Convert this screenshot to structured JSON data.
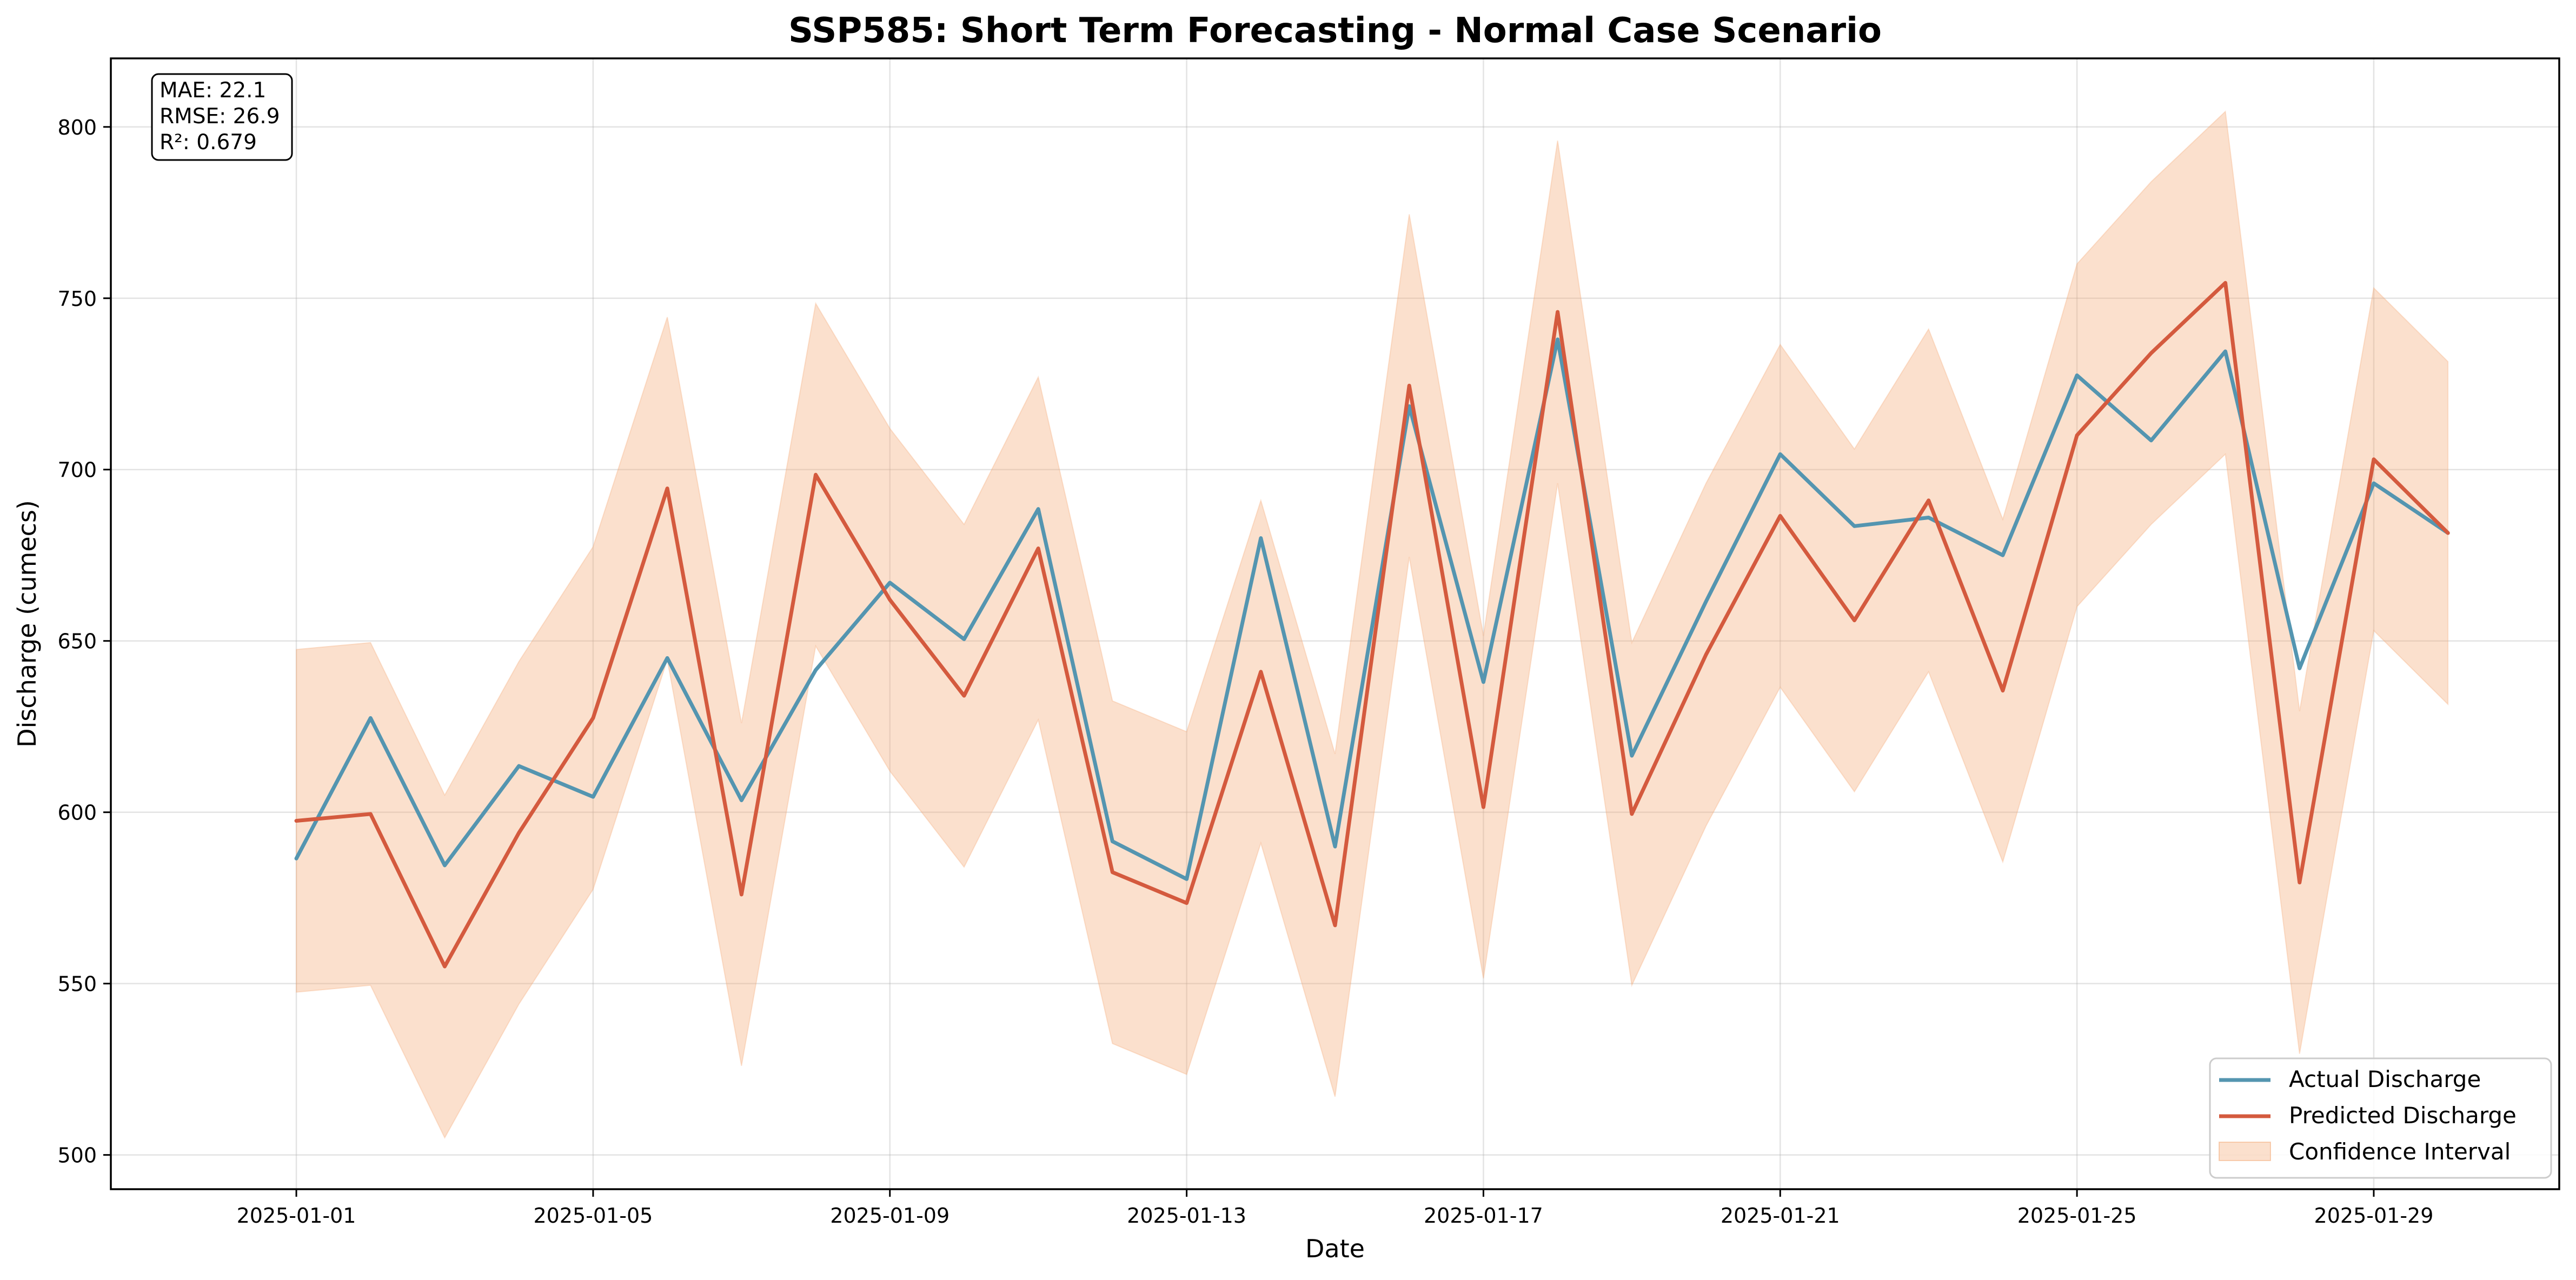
{
  "chart_data": {
    "type": "line",
    "title": "SSP585: Short Term Forecasting - Normal Case Scenario",
    "xlabel": "Date",
    "ylabel": "Discharge (cumecs)",
    "x": [
      "2025-01-01",
      "2025-01-02",
      "2025-01-03",
      "2025-01-04",
      "2025-01-05",
      "2025-01-06",
      "2025-01-07",
      "2025-01-08",
      "2025-01-09",
      "2025-01-10",
      "2025-01-11",
      "2025-01-12",
      "2025-01-13",
      "2025-01-14",
      "2025-01-15",
      "2025-01-16",
      "2025-01-17",
      "2025-01-18",
      "2025-01-19",
      "2025-01-20",
      "2025-01-21",
      "2025-01-22",
      "2025-01-23",
      "2025-01-24",
      "2025-01-25",
      "2025-01-26",
      "2025-01-27",
      "2025-01-28",
      "2025-01-29",
      "2025-01-30"
    ],
    "series": [
      {
        "name": "Actual Discharge",
        "color": "#5495b0",
        "values": [
          586.5,
          627.5,
          584.5,
          613.5,
          604.5,
          645,
          603.5,
          641.5,
          667,
          650.5,
          688.5,
          591.5,
          580.5,
          680,
          590,
          718.5,
          638,
          738,
          616.5,
          661.5,
          704.5,
          683.5,
          686,
          675,
          727.5,
          708.5,
          734.5,
          642,
          696,
          681.5
        ]
      },
      {
        "name": "Predicted Discharge",
        "color": "#d45a3e",
        "values": [
          597.5,
          599.5,
          555,
          594,
          627.5,
          694.5,
          576,
          698.5,
          662,
          634,
          677,
          582.5,
          573.5,
          641,
          567,
          724.5,
          601.5,
          746,
          599.5,
          646,
          686.5,
          656,
          691,
          635.5,
          710,
          734,
          754.5,
          579.5,
          703,
          681.5
        ]
      }
    ],
    "band": {
      "name": "Confidence Interval",
      "color": "#f4a671",
      "offset": 50
    },
    "metrics": [
      "MAE: 22.1",
      "RMSE: 26.9",
      "R²: 0.679"
    ],
    "yticks": [
      500,
      550,
      600,
      650,
      700,
      750,
      800
    ],
    "xticks": [
      "2025-01-01",
      "2025-01-05",
      "2025-01-09",
      "2025-01-13",
      "2025-01-17",
      "2025-01-21",
      "2025-01-25",
      "2025-01-29"
    ],
    "ylim": [
      490,
      820
    ],
    "xlim": [
      "2024-12-29T12:00",
      "2025-01-31T12:00"
    ],
    "grid": true,
    "legend_position": "bottom-right"
  }
}
